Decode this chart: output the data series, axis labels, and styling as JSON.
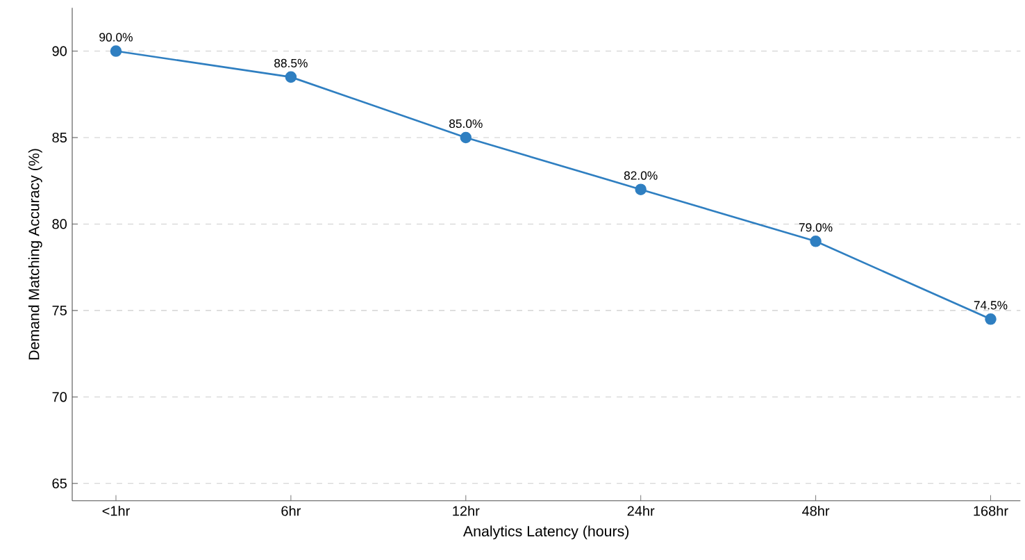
{
  "chart_data": {
    "type": "line",
    "xlabel": "Analytics Latency (hours)",
    "ylabel": "Demand Matching Accuracy (%)",
    "categories": [
      "<1hr",
      "6hr",
      "12hr",
      "24hr",
      "48hr",
      "168hr"
    ],
    "series": [
      {
        "color": "#2f7fc1",
        "values": [
          90.0,
          88.5,
          85.0,
          82.0,
          79.0,
          74.5
        ],
        "value_labels": [
          "90.0%",
          "88.5%",
          "85.0%",
          "82.0%",
          "79.0%",
          "74.5%"
        ]
      }
    ],
    "ylim": [
      64,
      92.5
    ],
    "yticks": [
      65,
      70,
      75,
      80,
      85,
      90
    ],
    "grid": "y",
    "marker": "circle",
    "line_style": "solid"
  }
}
